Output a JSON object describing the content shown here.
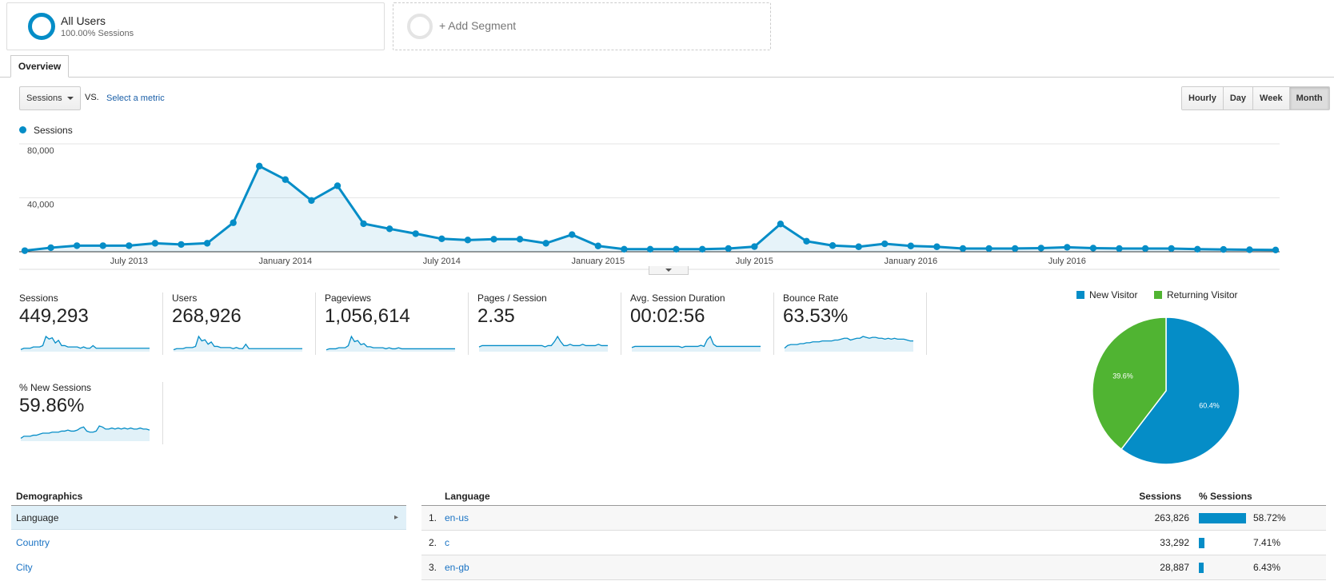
{
  "segments": {
    "all_users": {
      "title": "All Users",
      "subtitle": "100.00% Sessions"
    },
    "add_segment": {
      "label": "+ Add Segment"
    }
  },
  "tabs": {
    "overview": "Overview"
  },
  "controls": {
    "metric_select": "Sessions",
    "vs": "VS.",
    "select_metric": "Select a metric",
    "granularity": [
      "Hourly",
      "Day",
      "Week",
      "Month"
    ],
    "granularity_active": "Month"
  },
  "chart_legend": {
    "series": "Sessions"
  },
  "chart_data": {
    "type": "area",
    "title": "",
    "xlabel": "",
    "ylabel": "",
    "ylim": [
      0,
      80000
    ],
    "y_ticks": [
      "80,000",
      "40,000"
    ],
    "x_tick_labels": [
      "July 2013",
      "January 2014",
      "July 2014",
      "January 2015",
      "July 2015",
      "January 2016",
      "July 2016"
    ],
    "x_tick_index": [
      4,
      10,
      16,
      22,
      28,
      34,
      40
    ],
    "series": [
      {
        "color": "#058dc7",
        "values": [
          800,
          3000,
          4500,
          4500,
          4500,
          6300,
          5400,
          6300,
          21500,
          63500,
          53500,
          38000,
          48900,
          20800,
          17000,
          13400,
          9600,
          8700,
          9300,
          9300,
          6300,
          12700,
          4300,
          1900,
          1900,
          1900,
          1900,
          2400,
          3800,
          20600,
          7800,
          4600,
          3700,
          5900,
          4300,
          3700,
          2400,
          2400,
          2400,
          2700,
          3300,
          2700,
          2400,
          2400,
          2400,
          1900,
          1700,
          1500,
          1300
        ]
      }
    ]
  },
  "metrics": [
    {
      "label": "Sessions",
      "value": "449,293"
    },
    {
      "label": "Users",
      "value": "268,926"
    },
    {
      "label": "Pageviews",
      "value": "1,056,614"
    },
    {
      "label": "Pages / Session",
      "value": "2.35"
    },
    {
      "label": "Avg. Session Duration",
      "value": "00:02:56"
    },
    {
      "label": "Bounce Rate",
      "value": "63.53%"
    },
    {
      "label": "% New Sessions",
      "value": "59.86%"
    }
  ],
  "sparklines": {
    "sessions": [
      1,
      2,
      2,
      2,
      3,
      3,
      3,
      4,
      11,
      9,
      10,
      6,
      8,
      4,
      4,
      3,
      3,
      3,
      3,
      2,
      3,
      2,
      2,
      4,
      2,
      2,
      2,
      2,
      2,
      2,
      2,
      2,
      2,
      2,
      2,
      2,
      2,
      2,
      2,
      2,
      2,
      2
    ],
    "users": [
      1,
      2,
      2,
      2,
      3,
      3,
      3,
      4,
      13,
      9,
      10,
      6,
      8,
      4,
      4,
      3,
      3,
      3,
      3,
      2,
      3,
      2,
      2,
      6,
      2,
      2,
      2,
      2,
      2,
      2,
      2,
      2,
      2,
      2,
      2,
      2,
      2,
      2,
      2,
      2,
      2,
      2
    ],
    "pageviews": [
      1,
      2,
      2,
      2,
      3,
      3,
      3,
      5,
      14,
      9,
      10,
      6,
      7,
      4,
      4,
      3,
      3,
      3,
      3,
      2,
      3,
      2,
      2,
      3,
      2,
      2,
      2,
      2,
      2,
      2,
      2,
      2,
      2,
      2,
      2,
      2,
      2,
      2,
      2,
      2,
      2,
      2
    ],
    "pages_per_session": [
      3,
      4,
      4,
      4,
      4,
      4,
      4,
      4,
      4,
      4,
      4,
      4,
      4,
      4,
      4,
      4,
      4,
      4,
      4,
      4,
      4,
      3,
      4,
      4,
      7,
      11,
      7,
      4,
      4,
      5,
      4,
      4,
      4,
      5,
      4,
      4,
      4,
      4,
      5,
      4,
      4,
      4
    ],
    "avg_duration": [
      3,
      4,
      4,
      4,
      4,
      4,
      4,
      4,
      4,
      4,
      4,
      4,
      4,
      4,
      4,
      4,
      3,
      4,
      4,
      4,
      4,
      4,
      5,
      4,
      10,
      13,
      6,
      4,
      4,
      4,
      4,
      4,
      4,
      4,
      4,
      4,
      4,
      4,
      4,
      4,
      4,
      4
    ],
    "bounce_rate": [
      3,
      6,
      7,
      7,
      7,
      8,
      8,
      9,
      9,
      10,
      10,
      10,
      11,
      11,
      11,
      11,
      12,
      12,
      13,
      14,
      14,
      12,
      13,
      14,
      14,
      16,
      15,
      14,
      15,
      15,
      14,
      14,
      13,
      14,
      13,
      14,
      13,
      13,
      13,
      12,
      11,
      11
    ],
    "new_sessions": [
      2,
      4,
      4,
      4,
      5,
      5,
      6,
      7,
      7,
      7,
      8,
      8,
      8,
      9,
      9,
      10,
      9,
      9,
      10,
      12,
      13,
      9,
      8,
      8,
      9,
      14,
      13,
      11,
      11,
      12,
      11,
      12,
      11,
      12,
      11,
      12,
      11,
      11,
      12,
      11,
      11,
      10
    ]
  },
  "pie": {
    "legend": [
      {
        "name": "New Visitor",
        "color": "#058dc7"
      },
      {
        "name": "Returning Visitor",
        "color": "#50b432"
      }
    ],
    "slices": [
      {
        "name": "New Visitor",
        "value": 60.4,
        "label": "60.4%",
        "color": "#058dc7"
      },
      {
        "name": "Returning Visitor",
        "value": 39.6,
        "label": "39.6%",
        "color": "#50b432"
      }
    ]
  },
  "demographics": {
    "header": "Demographics",
    "items": [
      "Language",
      "Country",
      "City"
    ],
    "active": "Language"
  },
  "table": {
    "headers": {
      "language": "Language",
      "sessions": "Sessions",
      "pct_sessions": "% Sessions"
    },
    "rows": [
      {
        "index": "1.",
        "language": "en-us",
        "sessions": "263,826",
        "pct": "58.72%",
        "pct_value": 58.72
      },
      {
        "index": "2.",
        "language": "c",
        "sessions": "33,292",
        "pct": "7.41%",
        "pct_value": 7.41
      },
      {
        "index": "3.",
        "language": "en-gb",
        "sessions": "28,887",
        "pct": "6.43%",
        "pct_value": 6.43
      }
    ]
  }
}
